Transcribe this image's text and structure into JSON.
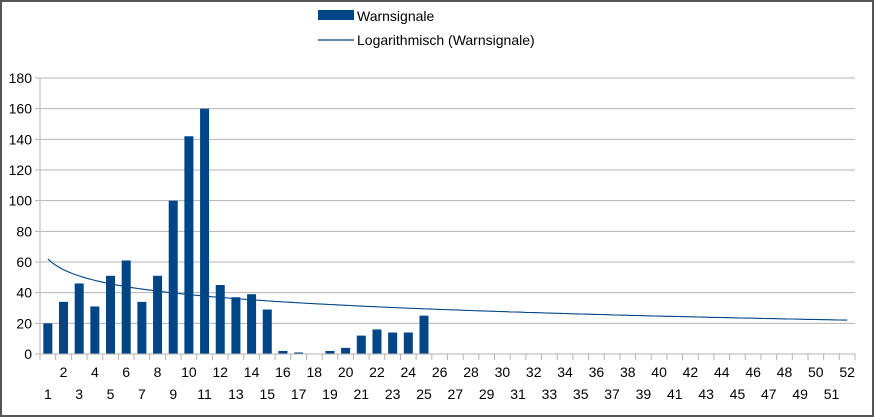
{
  "chart_data": {
    "type": "bar",
    "title": "",
    "xlabel": "",
    "ylabel": "",
    "ylim": [
      0,
      180
    ],
    "ytick_step": 20,
    "grid": true,
    "legend_placement": "top-center",
    "categories": [
      1,
      2,
      3,
      4,
      5,
      6,
      7,
      8,
      9,
      10,
      11,
      12,
      13,
      14,
      15,
      16,
      17,
      18,
      19,
      20,
      21,
      22,
      23,
      24,
      25,
      26,
      27,
      28,
      29,
      30,
      31,
      32,
      33,
      34,
      35,
      36,
      37,
      38,
      39,
      40,
      41,
      42,
      43,
      44,
      45,
      46,
      47,
      48,
      49,
      50,
      51,
      52
    ],
    "series": [
      {
        "name": "Warnsignale",
        "type": "bar",
        "color": "#004586",
        "values": [
          20,
          34,
          46,
          31,
          51,
          61,
          34,
          51,
          100,
          142,
          160,
          45,
          37,
          39,
          29,
          2,
          1,
          0,
          2,
          4,
          12,
          16,
          14,
          14,
          25,
          0,
          0,
          0,
          0,
          0,
          0,
          0,
          0,
          0,
          0,
          0,
          0,
          0,
          0,
          0,
          0,
          0,
          0,
          0,
          0,
          0,
          0,
          0,
          0,
          0,
          0,
          0
        ]
      }
    ],
    "trendline": {
      "name": "Logarithmisch (Warnsignale)",
      "type": "logarithmic",
      "color": "#004586",
      "intercept": 62,
      "slope": -10.1
    }
  }
}
